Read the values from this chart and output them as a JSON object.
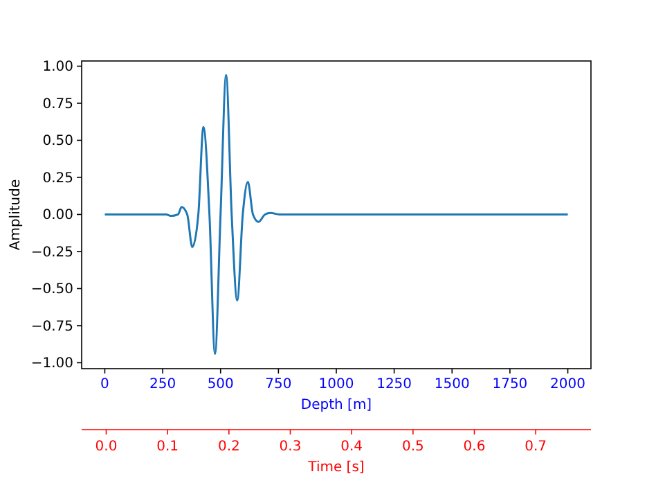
{
  "chart_data": {
    "type": "line",
    "xlabel": "Depth [m]",
    "ylabel": "Amplitude",
    "x2label": "Time [s]",
    "series": [
      {
        "color": "#1f77b4",
        "x": [
          0,
          264,
          288,
          316,
          332,
          356,
          378,
          404,
          426,
          452,
          476,
          500,
          524,
          548,
          572,
          596,
          618,
          640,
          664,
          692,
          716,
          754,
          2000
        ],
        "values": [
          0,
          0,
          -0.01,
          0,
          0.05,
          0,
          -0.22,
          0,
          0.59,
          0,
          -0.94,
          0,
          0.94,
          0,
          -0.58,
          0,
          0.22,
          0,
          -0.05,
          0,
          0.01,
          0,
          0
        ]
      }
    ],
    "xlim": [
      -100,
      2100
    ],
    "xticks": [
      0,
      250,
      500,
      750,
      1000,
      1250,
      1500,
      1750,
      2000
    ],
    "ylim": [
      -1.04,
      1.035
    ],
    "yticks": [
      {
        "value": -1,
        "label": "−1.00"
      },
      {
        "value": -0.75,
        "label": "−0.75"
      },
      {
        "value": -0.5,
        "label": "−0.50"
      },
      {
        "value": -0.25,
        "label": "−0.25"
      },
      {
        "value": 0,
        "label": "0.00"
      },
      {
        "value": 0.25,
        "label": "0.25"
      },
      {
        "value": 0.5,
        "label": "0.50"
      },
      {
        "value": 0.75,
        "label": "0.75"
      },
      {
        "value": 1,
        "label": "1.00"
      }
    ],
    "x2lim": [
      -0.04,
      0.79
    ],
    "x2ticks": [
      {
        "value": 0,
        "label": "0.0"
      },
      0.1,
      0.2,
      0.3,
      0.4,
      0.5,
      0.6,
      0.7
    ],
    "grid": false,
    "marker": "none",
    "line_style": "solid"
  }
}
